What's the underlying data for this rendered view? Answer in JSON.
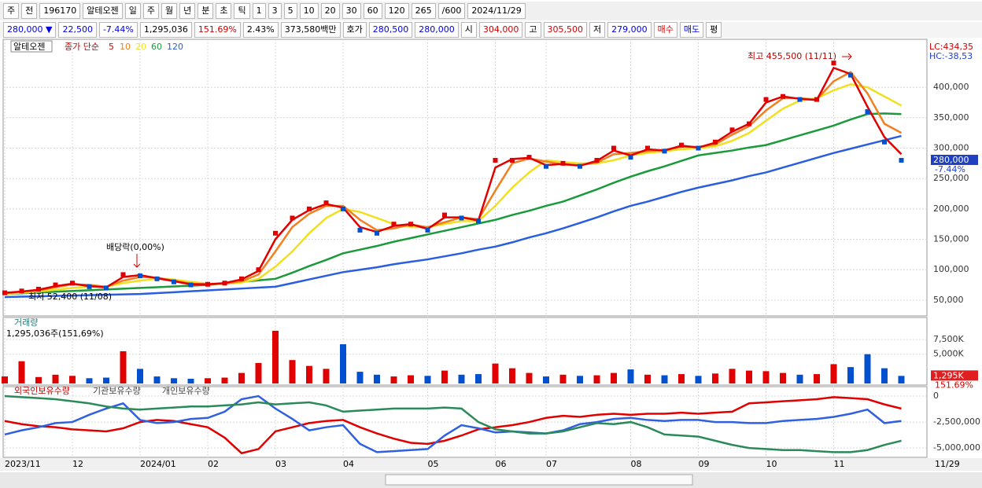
{
  "toolbar": {
    "row1": [
      "주",
      "전",
      "196170",
      "알테오젠",
      "일",
      "주",
      "월",
      "년",
      "분",
      "초",
      "틱",
      "1",
      "3",
      "5",
      "10",
      "20",
      "30",
      "60",
      "120",
      "265",
      "/600",
      "2024/11/29"
    ],
    "row2": [
      {
        "text": "280,000 ▼",
        "color": "#0000e0"
      },
      {
        "text": "22,500",
        "color": "#0000e0"
      },
      {
        "text": "-7.44%",
        "color": "#0000e0"
      },
      {
        "text": "1,295,036",
        "color": "#000000"
      },
      {
        "text": "151.69%",
        "color": "#d00000"
      },
      {
        "text": "2.43%",
        "color": "#000000"
      },
      {
        "text": "373,580백만",
        "color": "#000000"
      },
      {
        "text": "호가",
        "color": "#000000"
      },
      {
        "text": "280,500",
        "color": "#0000e0"
      },
      {
        "text": "280,000",
        "color": "#0000e0"
      },
      {
        "text": "시",
        "color": "#000000"
      },
      {
        "text": "304,000",
        "color": "#d00000"
      },
      {
        "text": "고",
        "color": "#000000"
      },
      {
        "text": "305,500",
        "color": "#d00000"
      },
      {
        "text": "저",
        "color": "#000000"
      },
      {
        "text": "279,000",
        "color": "#0000e0"
      },
      {
        "text": "매수",
        "color": "#d00000"
      },
      {
        "text": "매도",
        "color": "#0000e0"
      },
      {
        "text": "평",
        "color": "#000000"
      }
    ]
  },
  "chart_data": [
    {
      "type": "candle-line",
      "title": "알테오젠",
      "legend_title": "종가 단순",
      "categories": [
        "2023/11",
        null,
        null,
        null,
        "12",
        null,
        null,
        null,
        "2024/01",
        null,
        null,
        null,
        "02",
        null,
        null,
        null,
        "03",
        null,
        null,
        null,
        "04",
        null,
        null,
        null,
        null,
        "05",
        null,
        null,
        null,
        "06",
        null,
        null,
        "07",
        null,
        null,
        null,
        null,
        "08",
        null,
        null,
        null,
        "09",
        null,
        null,
        null,
        "10",
        null,
        null,
        null,
        "11",
        null,
        null,
        null,
        null
      ],
      "last_date": "11/29",
      "values": [
        62000,
        65000,
        68000,
        75000,
        78000,
        72000,
        70000,
        92000,
        90000,
        85000,
        80000,
        75000,
        76000,
        78000,
        85000,
        100000,
        160000,
        185000,
        200000,
        210000,
        200000,
        165000,
        160000,
        175000,
        175000,
        165000,
        190000,
        185000,
        180000,
        280000,
        280000,
        285000,
        270000,
        275000,
        270000,
        280000,
        300000,
        285000,
        300000,
        295000,
        305000,
        300000,
        310000,
        330000,
        340000,
        380000,
        385000,
        380000,
        380000,
        440000,
        420000,
        360000,
        310000,
        280000
      ],
      "up_color": "#e00000",
      "down_color": "#0050d0",
      "series": [
        {
          "name": "5",
          "color": "#e00000",
          "values": [
            62000,
            64000,
            67000,
            73000,
            77000,
            73000,
            71000,
            88000,
            91000,
            86000,
            81000,
            76000,
            76000,
            78000,
            84000,
            98000,
            150000,
            182000,
            198000,
            208000,
            202000,
            170000,
            162000,
            172000,
            175000,
            167000,
            186000,
            186000,
            181000,
            268000,
            282000,
            284000,
            272000,
            274000,
            271000,
            279000,
            296000,
            288000,
            298000,
            296000,
            304000,
            301000,
            309000,
            327000,
            340000,
            375000,
            385000,
            381000,
            379000,
            432000,
            422000,
            368000,
            318000,
            290000
          ]
        },
        {
          "name": "10",
          "color": "#f08020",
          "values": [
            61000,
            64000,
            66000,
            71000,
            76000,
            75000,
            72000,
            82000,
            88000,
            87000,
            82000,
            77000,
            76000,
            77000,
            81000,
            92000,
            130000,
            170000,
            192000,
            205000,
            205000,
            182000,
            165000,
            168000,
            174000,
            170000,
            178000,
            186000,
            183000,
            230000,
            275000,
            283000,
            278000,
            273000,
            272000,
            276000,
            290000,
            292000,
            295000,
            297000,
            302000,
            302000,
            306000,
            322000,
            336000,
            362000,
            382000,
            382000,
            380000,
            410000,
            425000,
            390000,
            340000,
            325000
          ]
        },
        {
          "name": "20",
          "color": "#f0e020",
          "values": [
            60000,
            62000,
            64000,
            67000,
            70000,
            72000,
            72000,
            78000,
            82000,
            85000,
            84000,
            80000,
            77000,
            77000,
            79000,
            85000,
            105000,
            130000,
            160000,
            185000,
            200000,
            195000,
            185000,
            175000,
            170000,
            170000,
            175000,
            180000,
            180000,
            205000,
            235000,
            260000,
            280000,
            277000,
            275000,
            275000,
            280000,
            288000,
            292000,
            295000,
            298000,
            300000,
            303000,
            312000,
            325000,
            345000,
            365000,
            378000,
            382000,
            395000,
            405000,
            400000,
            385000,
            370000
          ]
        },
        {
          "name": "60",
          "color": "#1a9a3a",
          "values": [
            60000,
            61200,
            62500,
            63700,
            65000,
            66200,
            67500,
            68700,
            70000,
            71200,
            72500,
            73700,
            75000,
            77500,
            80000,
            82500,
            85000,
            95000,
            106000,
            116000,
            127000,
            133000,
            139000,
            146000,
            152000,
            158000,
            164000,
            170000,
            176000,
            182000,
            190000,
            197000,
            205000,
            212000,
            222000,
            232000,
            243000,
            253000,
            262000,
            270000,
            279000,
            288000,
            292000,
            296000,
            301000,
            305000,
            313000,
            321000,
            329000,
            337000,
            347000,
            356000,
            357000,
            356000
          ]
        },
        {
          "name": "120",
          "color": "#2a5ee0",
          "values": [
            55000,
            55600,
            56200,
            56900,
            57500,
            58100,
            58800,
            59400,
            60000,
            61500,
            63000,
            64500,
            66000,
            67500,
            69000,
            70500,
            72000,
            78000,
            84000,
            90000,
            96000,
            100000,
            104000,
            109000,
            113000,
            117000,
            122000,
            127000,
            133000,
            138000,
            145000,
            153000,
            160000,
            168000,
            177000,
            186000,
            196000,
            205000,
            212000,
            220000,
            228000,
            235000,
            241000,
            247000,
            254000,
            260000,
            268000,
            276000,
            284000,
            292000,
            299000,
            306000,
            313000,
            320000
          ]
        }
      ],
      "ylim": [
        24000,
        479000
      ],
      "yticks": [
        {
          "value": 50000,
          "label": "50,000"
        },
        {
          "value": 100000,
          "label": "100,000"
        },
        {
          "value": 150000,
          "label": "150,000"
        },
        {
          "value": 200000,
          "label": "200,000"
        },
        {
          "value": 250000,
          "label": "250,000"
        },
        {
          "value": 300000,
          "label": "300,000"
        },
        {
          "value": 350000,
          "label": "350,000"
        },
        {
          "value": 400000,
          "label": "400,000"
        }
      ],
      "grid": true,
      "current_price": {
        "value": 280000,
        "label": "280,000"
      },
      "current_change": "-7.44%",
      "lc_label": "LC:434,35",
      "hc_label": "HC:-38,53",
      "annotations": [
        "최고 455,500 (11/11)",
        "최저 52,400 (11/08)",
        "배당락(0,00%)"
      ]
    },
    {
      "type": "bar",
      "title": "거래량",
      "subtitle": "1,295,036주(151,69%)",
      "values": [
        1200000,
        3800000,
        1100000,
        1500000,
        1300000,
        900000,
        1000000,
        5500000,
        2500000,
        1200000,
        900000,
        800000,
        900000,
        1000000,
        1800000,
        3500000,
        9000000,
        4000000,
        3000000,
        2500000,
        6700000,
        2000000,
        1500000,
        1200000,
        1400000,
        1300000,
        2200000,
        1500000,
        1600000,
        3400000,
        2600000,
        1800000,
        1200000,
        1500000,
        1300000,
        1400000,
        1800000,
        2400000,
        1500000,
        1400000,
        1600000,
        1300000,
        1700000,
        2500000,
        2200000,
        2100000,
        1800000,
        1500000,
        1600000,
        3300000,
        2800000,
        5000000,
        2600000,
        1295036
      ],
      "ylim": [
        0,
        11000000
      ],
      "yticks": [
        {
          "value": 5000000,
          "label": "5,000K"
        },
        {
          "value": 7500000,
          "label": "7,500K"
        }
      ],
      "grid": true,
      "current_volume": {
        "value": 1295036,
        "label": "1,295K"
      },
      "current_ratio": "151.69%"
    },
    {
      "type": "line",
      "series": [
        {
          "name": "외국인보유수량",
          "color": "#e00000",
          "values": [
            -2400000,
            -2700000,
            -2900000,
            -3000000,
            -3200000,
            -3300000,
            -3400000,
            -3100000,
            -2500000,
            -2300000,
            -2400000,
            -2700000,
            -3000000,
            -4000000,
            -5500000,
            -5100000,
            -3400000,
            -3000000,
            -2600000,
            -2400000,
            -2300000,
            -3000000,
            -3600000,
            -4100000,
            -4500000,
            -4600000,
            -4300000,
            -3800000,
            -3200000,
            -3000000,
            -2800000,
            -2500000,
            -2100000,
            -1900000,
            -2000000,
            -1800000,
            -1700000,
            -1800000,
            -1700000,
            -1700000,
            -1600000,
            -1700000,
            -1600000,
            -1500000,
            -700000,
            -600000,
            -500000,
            -400000,
            -300000,
            -100000,
            -200000,
            -300000,
            -800000,
            -1200000
          ]
        },
        {
          "name": "기관보유수량",
          "color": "#3060e0",
          "values": [
            -3700000,
            -3300000,
            -3000000,
            -2600000,
            -2500000,
            -1800000,
            -1200000,
            -700000,
            -2300000,
            -2600000,
            -2500000,
            -2200000,
            -2100000,
            -1500000,
            -300000,
            0,
            -1200000,
            -2200000,
            -3300000,
            -3000000,
            -2800000,
            -4600000,
            -5400000,
            -5300000,
            -5200000,
            -5100000,
            -3800000,
            -2800000,
            -3100000,
            -3500000,
            -3400000,
            -3500000,
            -3600000,
            -3300000,
            -2700000,
            -2500000,
            -2200000,
            -2100000,
            -2300000,
            -2400000,
            -2300000,
            -2300000,
            -2500000,
            -2500000,
            -2600000,
            -2600000,
            -2400000,
            -2300000,
            -2200000,
            -2000000,
            -1700000,
            -1300000,
            -2600000,
            -2400000
          ]
        },
        {
          "name": "개인보유수량",
          "color": "#2a8a5a",
          "values": [
            0,
            -100000,
            -200000,
            -300000,
            -500000,
            -700000,
            -1000000,
            -1200000,
            -1300000,
            -1200000,
            -1100000,
            -1000000,
            -1000000,
            -900000,
            -800000,
            -600000,
            -800000,
            -700000,
            -600000,
            -900000,
            -1500000,
            -1400000,
            -1300000,
            -1200000,
            -1200000,
            -1200000,
            -1100000,
            -1200000,
            -2500000,
            -3200000,
            -3400000,
            -3600000,
            -3600000,
            -3400000,
            -3000000,
            -2600000,
            -2700000,
            -2500000,
            -3000000,
            -3700000,
            -3800000,
            -3900000,
            -4300000,
            -4700000,
            -5000000,
            -5100000,
            -5200000,
            -5200000,
            -5300000,
            -5400000,
            -5400000,
            -5200000,
            -4700000,
            -4300000
          ]
        }
      ],
      "ylim": [
        -5900000,
        760000
      ],
      "yticks": [
        0,
        {
          "value": -2500000,
          "label": "-2,500,000"
        },
        {
          "value": -5000000,
          "label": "-5,000,000"
        }
      ],
      "grid": true
    }
  ]
}
